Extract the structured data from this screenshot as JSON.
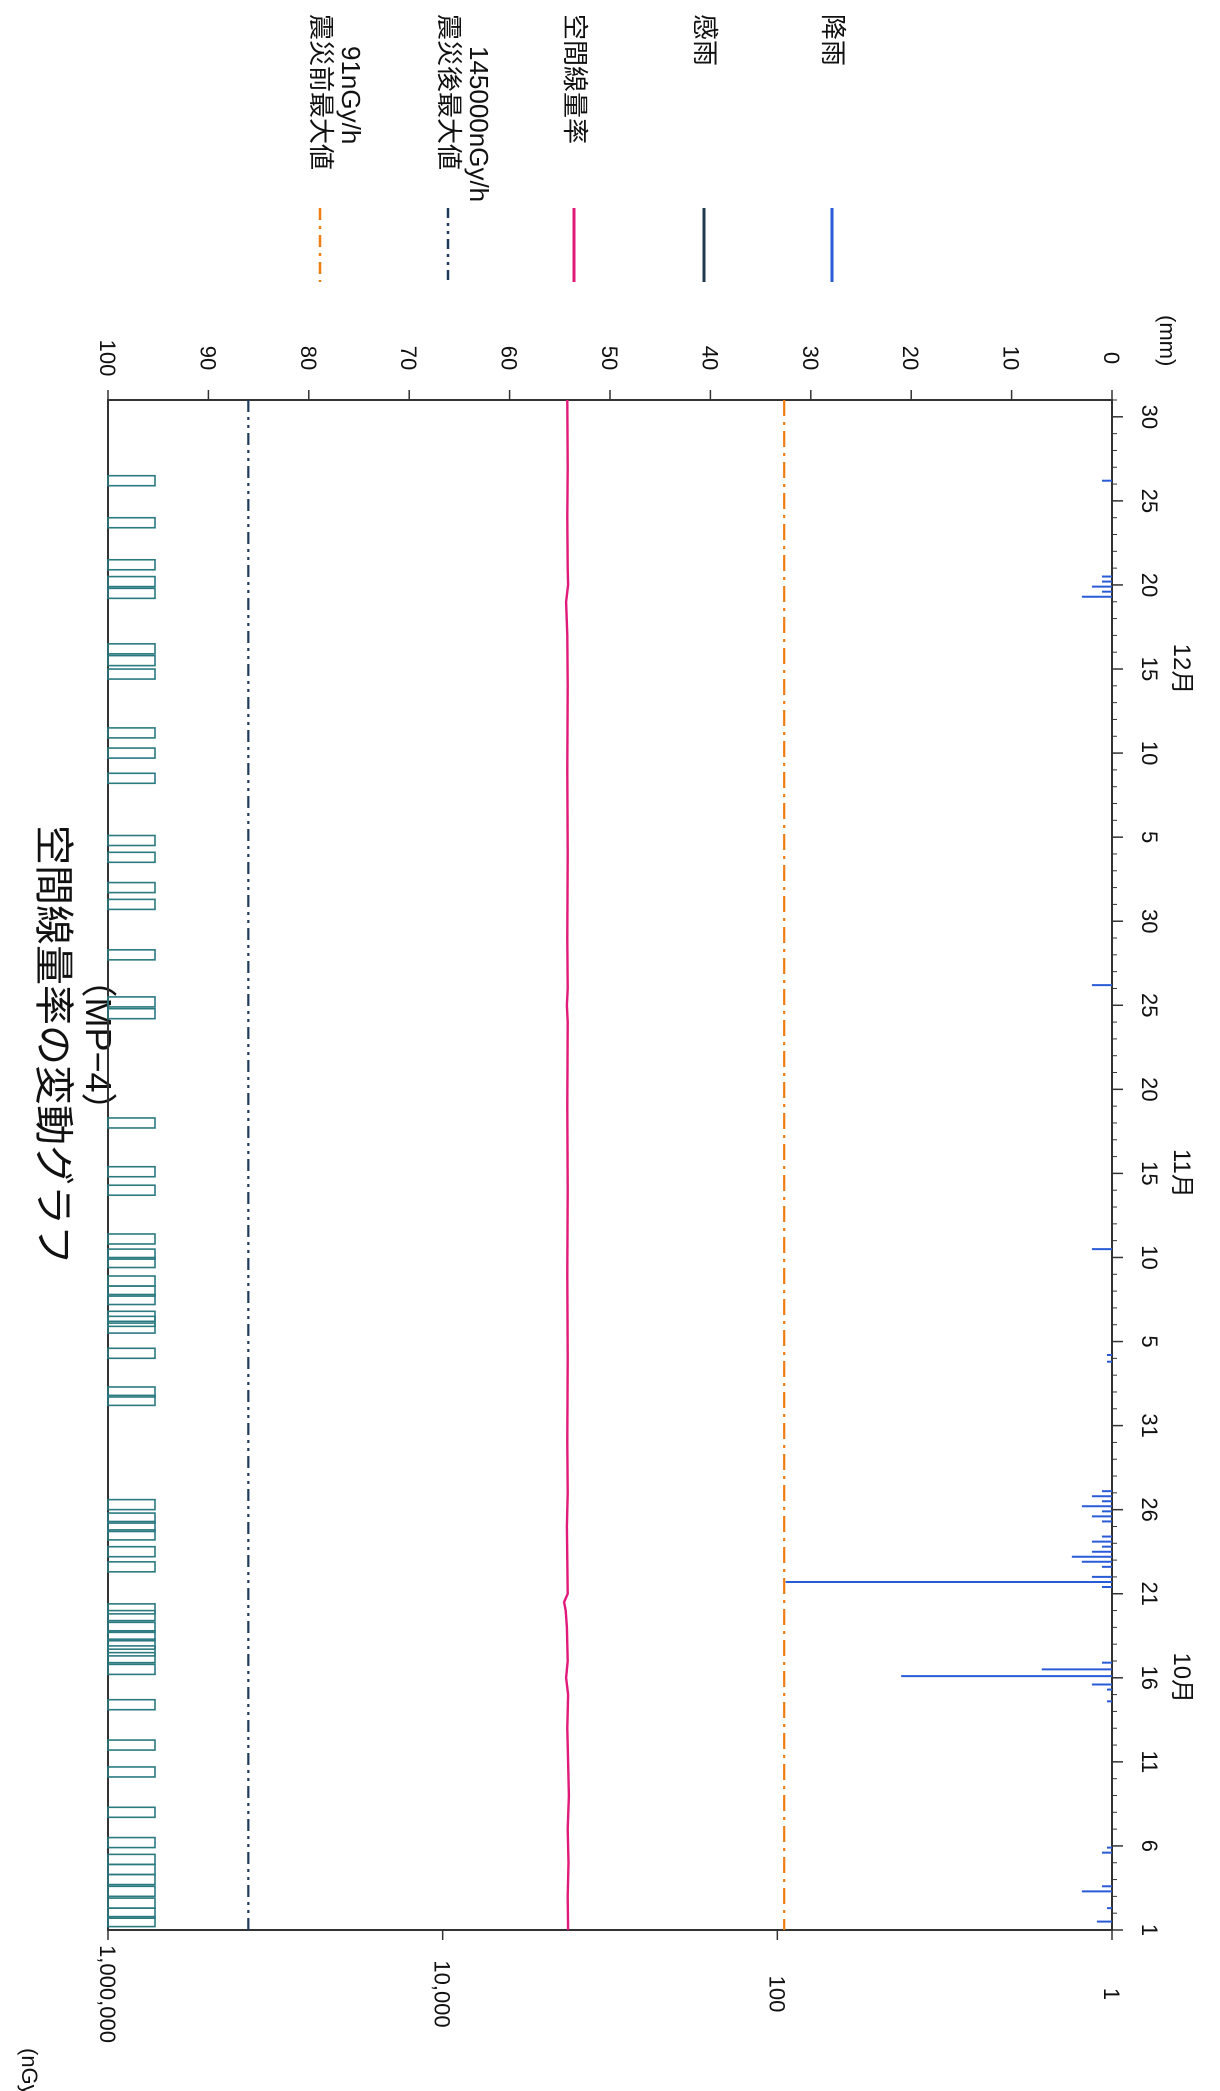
{
  "title": "空間線量率の変動グラフ",
  "subtitle": "（MP−4）",
  "chart_data": {
    "type": "line",
    "title": "空間線量率の変動グラフ",
    "subtitle": "（MP−4）",
    "y_left": {
      "unit": "(nGy/h)",
      "scale": "log",
      "range": [
        1,
        1000000
      ],
      "ticks": [
        {
          "value": 1,
          "label": "1"
        },
        {
          "value": 100,
          "label": "100"
        },
        {
          "value": 10000,
          "label": "10,000"
        },
        {
          "value": 1000000,
          "label": "1,000,000"
        }
      ]
    },
    "y_right": {
      "unit": "(mm)",
      "range": [
        0,
        100
      ],
      "ticks": [
        {
          "value": 0,
          "label": "0"
        },
        {
          "value": 10,
          "label": "10"
        },
        {
          "value": 20,
          "label": "20"
        },
        {
          "value": 30,
          "label": "30"
        },
        {
          "value": 40,
          "label": "40"
        },
        {
          "value": 50,
          "label": "50"
        },
        {
          "value": 60,
          "label": "60"
        },
        {
          "value": 70,
          "label": "70"
        },
        {
          "value": 80,
          "label": "80"
        },
        {
          "value": 90,
          "label": "90"
        },
        {
          "value": 100,
          "label": "100"
        }
      ]
    },
    "x": {
      "range": [
        1,
        92
      ],
      "ticks": [
        {
          "day": 1,
          "label": "1"
        },
        {
          "day": 6,
          "label": "6"
        },
        {
          "day": 11,
          "label": "11"
        },
        {
          "day": 16,
          "label": "16"
        },
        {
          "day": 21,
          "label": "21"
        },
        {
          "day": 26,
          "label": "26"
        },
        {
          "day": 31,
          "label": "31"
        },
        {
          "day": 36,
          "label": "5"
        },
        {
          "day": 41,
          "label": "10"
        },
        {
          "day": 46,
          "label": "15"
        },
        {
          "day": 51,
          "label": "20"
        },
        {
          "day": 56,
          "label": "25"
        },
        {
          "day": 61,
          "label": "30"
        },
        {
          "day": 66,
          "label": "5"
        },
        {
          "day": 71,
          "label": "10"
        },
        {
          "day": 76,
          "label": "15"
        },
        {
          "day": 81,
          "label": "20"
        },
        {
          "day": 86,
          "label": "25"
        },
        {
          "day": 91,
          "label": "30"
        }
      ],
      "months": [
        {
          "day": 16,
          "label": "10月"
        },
        {
          "day": 46,
          "label": "11月"
        },
        {
          "day": 76,
          "label": "12月"
        }
      ]
    },
    "reference_lines": [
      {
        "name": "震災前最大値\n91nGy/h",
        "value": 91,
        "color": "#f07d14",
        "style": "dash-dot"
      },
      {
        "name": "震災後最大値\n145000nGy/h",
        "value": 145000,
        "color": "#1f3a5a",
        "style": "dash-dot-dot"
      }
    ],
    "series": [
      {
        "name": "空間線量率",
        "color": "#e0197a",
        "axis": "left",
        "points": [
          [
            1,
            1780
          ],
          [
            3,
            1790
          ],
          [
            5,
            1770
          ],
          [
            7,
            1790
          ],
          [
            9,
            1760
          ],
          [
            11,
            1780
          ],
          [
            13,
            1800
          ],
          [
            15,
            1780
          ],
          [
            16,
            1830
          ],
          [
            17,
            1790
          ],
          [
            19,
            1810
          ],
          [
            20,
            1840
          ],
          [
            20.5,
            1880
          ],
          [
            21,
            1790
          ],
          [
            23,
            1800
          ],
          [
            25,
            1810
          ],
          [
            27,
            1790
          ],
          [
            30,
            1800
          ],
          [
            35,
            1790
          ],
          [
            40,
            1800
          ],
          [
            45,
            1790
          ],
          [
            50,
            1800
          ],
          [
            55,
            1790
          ],
          [
            56,
            1810
          ],
          [
            57,
            1790
          ],
          [
            60,
            1800
          ],
          [
            65,
            1790
          ],
          [
            70,
            1800
          ],
          [
            75,
            1790
          ],
          [
            78,
            1800
          ],
          [
            80,
            1830
          ],
          [
            81,
            1780
          ],
          [
            82,
            1790
          ],
          [
            85,
            1800
          ],
          [
            88,
            1790
          ],
          [
            92,
            1800
          ]
        ]
      },
      {
        "name": "降雨",
        "color": "#2a5bd7",
        "axis": "right",
        "points": [
          [
            1.5,
            1.5
          ],
          [
            2.3,
            0.5
          ],
          [
            3.3,
            3
          ],
          [
            3.6,
            1
          ],
          [
            5.6,
            1
          ],
          [
            5.9,
            0.5
          ],
          [
            14.6,
            0.5
          ],
          [
            15.3,
            0.5
          ],
          [
            15.6,
            2
          ],
          [
            16.1,
            21
          ],
          [
            16.5,
            7
          ],
          [
            16.9,
            1
          ],
          [
            21.4,
            1
          ],
          [
            21.7,
            32.5
          ],
          [
            22,
            2
          ],
          [
            22.6,
            1
          ],
          [
            22.9,
            3
          ],
          [
            23.2,
            4
          ],
          [
            23.5,
            2
          ],
          [
            23.8,
            1
          ],
          [
            24.1,
            2
          ],
          [
            24.4,
            1
          ],
          [
            25.3,
            1
          ],
          [
            25.6,
            2
          ],
          [
            25.9,
            1
          ],
          [
            26.2,
            3
          ],
          [
            26.5,
            1
          ],
          [
            26.8,
            2
          ],
          [
            27.1,
            1
          ],
          [
            34.8,
            0.5
          ],
          [
            35.2,
            0.5
          ],
          [
            41.5,
            2
          ],
          [
            57.2,
            2
          ],
          [
            80.3,
            3
          ],
          [
            80.6,
            1
          ],
          [
            80.9,
            2
          ],
          [
            81.2,
            1
          ],
          [
            81.5,
            1
          ],
          [
            87.2,
            1
          ]
        ]
      },
      {
        "name": "感雨",
        "color": "#2a7a80",
        "axis": "top-band",
        "rain_sensed_days": [
          1.5,
          2,
          2.6,
          3.3,
          4,
          4.6,
          5.2,
          6.2,
          8,
          10.4,
          12,
          14.4,
          16.5,
          17.2,
          17.6,
          18,
          18.5,
          19,
          19.7,
          20.1,
          22.6,
          23.5,
          24.5,
          25,
          25.5,
          26.3,
          32.5,
          33,
          35.3,
          36.8,
          37.2,
          37.5,
          38.5,
          39,
          39.6,
          40.7,
          41.2,
          42.1,
          45,
          46.1,
          49,
          55.5,
          56.2,
          59,
          62,
          63,
          64.8,
          65.8,
          69.5,
          71,
          72.2,
          75.7,
          76.5,
          77.2,
          80.5,
          81.2,
          82.2,
          84.7,
          87.2
        ]
      }
    ],
    "legend": {
      "placement": "right, rotated"
    }
  }
}
